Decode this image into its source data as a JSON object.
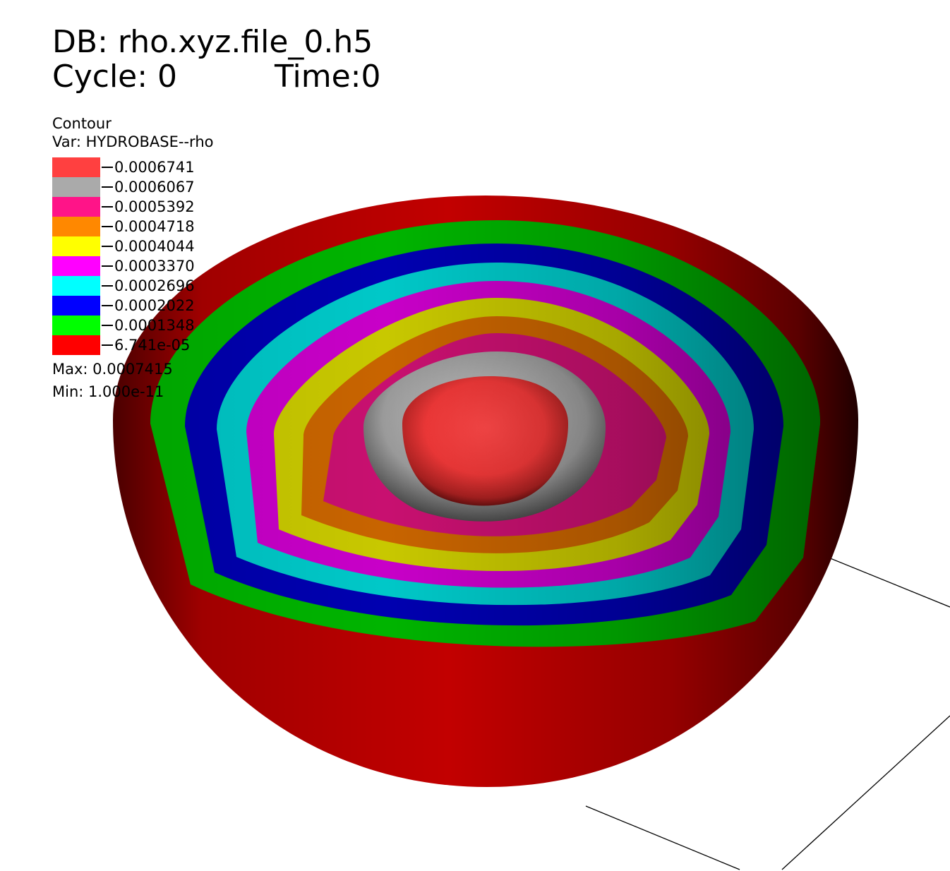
{
  "header": {
    "db": "DB: rho.xyz.file_0.h5",
    "cycle": "Cycle: 0",
    "time": "Time:0"
  },
  "legend": {
    "plot_type": "Contour",
    "variable": "Var: HYDROBASE--rho",
    "levels": [
      {
        "value": "0.0006741",
        "color": "#ff4040"
      },
      {
        "value": "0.0006067",
        "color": "#aaaaaa"
      },
      {
        "value": "0.0005392",
        "color": "#ff1488"
      },
      {
        "value": "0.0004718",
        "color": "#ff8800"
      },
      {
        "value": "0.0004044",
        "color": "#ffff00"
      },
      {
        "value": "0.0003370",
        "color": "#ff00ff"
      },
      {
        "value": "0.0002696",
        "color": "#00ffff"
      },
      {
        "value": "0.0002022",
        "color": "#0000ff"
      },
      {
        "value": "0.0001348",
        "color": "#00ff00"
      },
      {
        "value": "6.741e-05",
        "color": "#ff0000"
      }
    ],
    "max": "Max: 0.0007415",
    "min": "Min: 1.000e-11"
  }
}
